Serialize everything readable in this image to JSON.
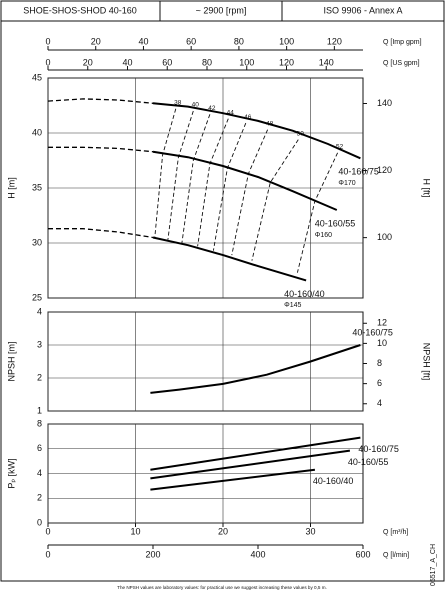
{
  "header": {
    "model": "SHOE-SHOS-SHOD 40-160",
    "speed": "~ 2900 [rpm]",
    "standard": "ISO 9906 - Annex A"
  },
  "flow_axes": [
    {
      "label": "Q [Imp gpm]",
      "lim": [
        0,
        132
      ],
      "ticks": [
        0,
        20,
        40,
        60,
        80,
        100,
        120
      ]
    },
    {
      "label": "Q [US gpm]",
      "lim": [
        0,
        158.5
      ],
      "ticks": [
        0,
        20,
        40,
        60,
        80,
        100,
        120,
        140
      ]
    },
    {
      "label": "Q [m³/h]",
      "lim": [
        0,
        36
      ],
      "ticks": [
        0,
        10,
        20,
        30
      ]
    },
    {
      "label": "Q [l/min]",
      "lim": [
        0,
        600
      ],
      "ticks": [
        0,
        200,
        400,
        600
      ]
    }
  ],
  "chart_data": [
    {
      "type": "line",
      "ylabel": "H [m]",
      "ylim": [
        25,
        45
      ],
      "yticks": [
        25,
        30,
        35,
        40,
        45
      ],
      "y2label": "H [ft]",
      "y2lim": [
        82.0,
        147.6
      ],
      "y2ticks": [
        100,
        120,
        140
      ],
      "solid_from": 12,
      "series": [
        {
          "name": "40-160/75",
          "sublabel": "Φ170",
          "color": "#000000",
          "x": [
            0,
            4,
            8,
            12,
            16,
            20,
            24,
            28,
            32,
            35.7
          ],
          "values": [
            42.9,
            43.1,
            43.0,
            42.7,
            42.4,
            41.8,
            41.1,
            40.2,
            39.0,
            37.7
          ]
        },
        {
          "name": "40-160/55",
          "sublabel": "Φ160",
          "color": "#000000",
          "x": [
            0,
            4,
            8,
            12,
            16,
            20,
            24,
            28,
            33
          ],
          "values": [
            38.7,
            38.7,
            38.6,
            38.3,
            37.8,
            37.0,
            36.0,
            34.7,
            33.0
          ]
        },
        {
          "name": "40-160/40",
          "sublabel": "Φ145",
          "color": "#000000",
          "x": [
            0,
            4,
            8,
            12,
            16,
            20,
            24,
            29.5
          ],
          "values": [
            31.3,
            31.3,
            31.0,
            30.5,
            29.8,
            28.9,
            27.9,
            26.6
          ]
        }
      ],
      "efficiency_lines": [
        {
          "label": 38,
          "x": [
            14.6,
            13.1,
            12.2
          ],
          "values": [
            42.2,
            38.0,
            30.5
          ]
        },
        {
          "label": 40,
          "x": [
            16.6,
            14.9,
            13.7
          ],
          "values": [
            42.0,
            37.8,
            30.3
          ]
        },
        {
          "label": 42,
          "x": [
            18.5,
            16.6,
            15.3
          ],
          "values": [
            41.7,
            37.5,
            30.0
          ]
        },
        {
          "label": 44,
          "x": [
            20.6,
            18.5,
            17.1
          ],
          "values": [
            41.3,
            37.2,
            29.7
          ]
        },
        {
          "label": 46,
          "x": [
            22.6,
            20.5,
            18.9
          ],
          "values": [
            40.9,
            36.8,
            29.3
          ]
        },
        {
          "label": 48,
          "x": [
            25.1,
            22.9,
            21.0
          ],
          "values": [
            40.3,
            36.3,
            28.9
          ]
        },
        {
          "label": 50,
          "x": [
            28.6,
            25.4,
            23.3
          ],
          "values": [
            39.4,
            35.5,
            28.4
          ]
        },
        {
          "label": 52,
          "x": [
            33.1,
            30.5,
            28.5
          ],
          "values": [
            38.2,
            33.8,
            27.3
          ]
        }
      ]
    },
    {
      "type": "line",
      "ylabel": "NPSH [m]",
      "ylim": [
        1,
        4
      ],
      "yticks": [
        1,
        2,
        3,
        4
      ],
      "y2label": "NPSH [ft]",
      "y2lim": [
        3.28,
        13.12
      ],
      "y2ticks": [
        4,
        6,
        8,
        10,
        12
      ],
      "series": [
        {
          "name": "40-160/75",
          "color": "#000000",
          "x": [
            11.7,
            15,
            20,
            25,
            30,
            35.7
          ],
          "values": [
            1.55,
            1.65,
            1.82,
            2.1,
            2.5,
            3.0
          ]
        }
      ]
    },
    {
      "type": "line",
      "ylabel": "Pₚ [kW]",
      "ylim": [
        0,
        8
      ],
      "yticks": [
        0,
        2,
        4,
        6,
        8
      ],
      "series": [
        {
          "name": "40-160/75",
          "color": "#000000",
          "x": [
            11.7,
            35.7
          ],
          "values": [
            4.3,
            6.9
          ]
        },
        {
          "name": "40-160/55",
          "color": "#000000",
          "x": [
            11.7,
            34.5
          ],
          "values": [
            3.6,
            5.85
          ]
        },
        {
          "name": "40-160/40",
          "color": "#000000",
          "x": [
            11.7,
            30.5
          ],
          "values": [
            2.7,
            4.3
          ]
        }
      ]
    }
  ],
  "footnote": "The NPSH values are laboratory values: for practical use we suggest increasing these values by 0,5 m.",
  "doc_code": "05517_A_CH"
}
